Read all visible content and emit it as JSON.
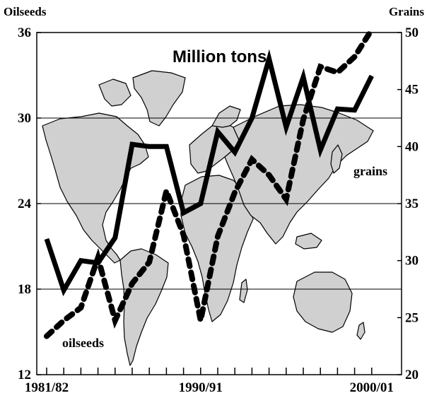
{
  "chart_data": {
    "type": "line",
    "title": "Million tons",
    "left_axis": {
      "label": "Oilseeds",
      "ylim": [
        12,
        36
      ],
      "ticks": [
        12,
        18,
        24,
        30,
        36
      ]
    },
    "right_axis": {
      "label": "Grains",
      "ylim": [
        20,
        50
      ],
      "ticks": [
        20,
        25,
        30,
        35,
        40,
        45,
        50
      ]
    },
    "x_tick_labels": [
      "1981/82",
      "1990/91",
      "2000/01"
    ],
    "x_year_range": [
      1981,
      2000
    ],
    "grid": "horizontal",
    "background": "world map",
    "series": [
      {
        "name": "grains",
        "axis": "right",
        "style": "solid",
        "color": "#000000",
        "x": [
          1981,
          1982,
          1983,
          1984,
          1985,
          1986,
          1987,
          1988,
          1989,
          1990,
          1991,
          1992,
          1993,
          1994,
          1995,
          1996,
          1997,
          1998,
          1999,
          2000
        ],
        "values": [
          31.9,
          27.4,
          30.0,
          29.8,
          32.0,
          40.2,
          40.0,
          40.0,
          34.2,
          35.0,
          41.3,
          39.5,
          42.5,
          47.7,
          41.7,
          46.1,
          39.7,
          43.3,
          43.2,
          46.2
        ]
      },
      {
        "name": "oilseeds",
        "axis": "left",
        "style": "dashed",
        "color": "#000000",
        "x": [
          1981,
          1982,
          1983,
          1984,
          1985,
          1986,
          1987,
          1988,
          1989,
          1990,
          1991,
          1992,
          1993,
          1994,
          1995,
          1996,
          1997,
          1998,
          1999,
          2000
        ],
        "values": [
          14.7,
          15.8,
          16.7,
          20.2,
          15.8,
          18.4,
          19.9,
          24.9,
          21.8,
          15.8,
          21.7,
          24.8,
          27.1,
          26.0,
          24.3,
          29.9,
          33.6,
          33.2,
          34.3,
          36.2
        ]
      }
    ]
  }
}
